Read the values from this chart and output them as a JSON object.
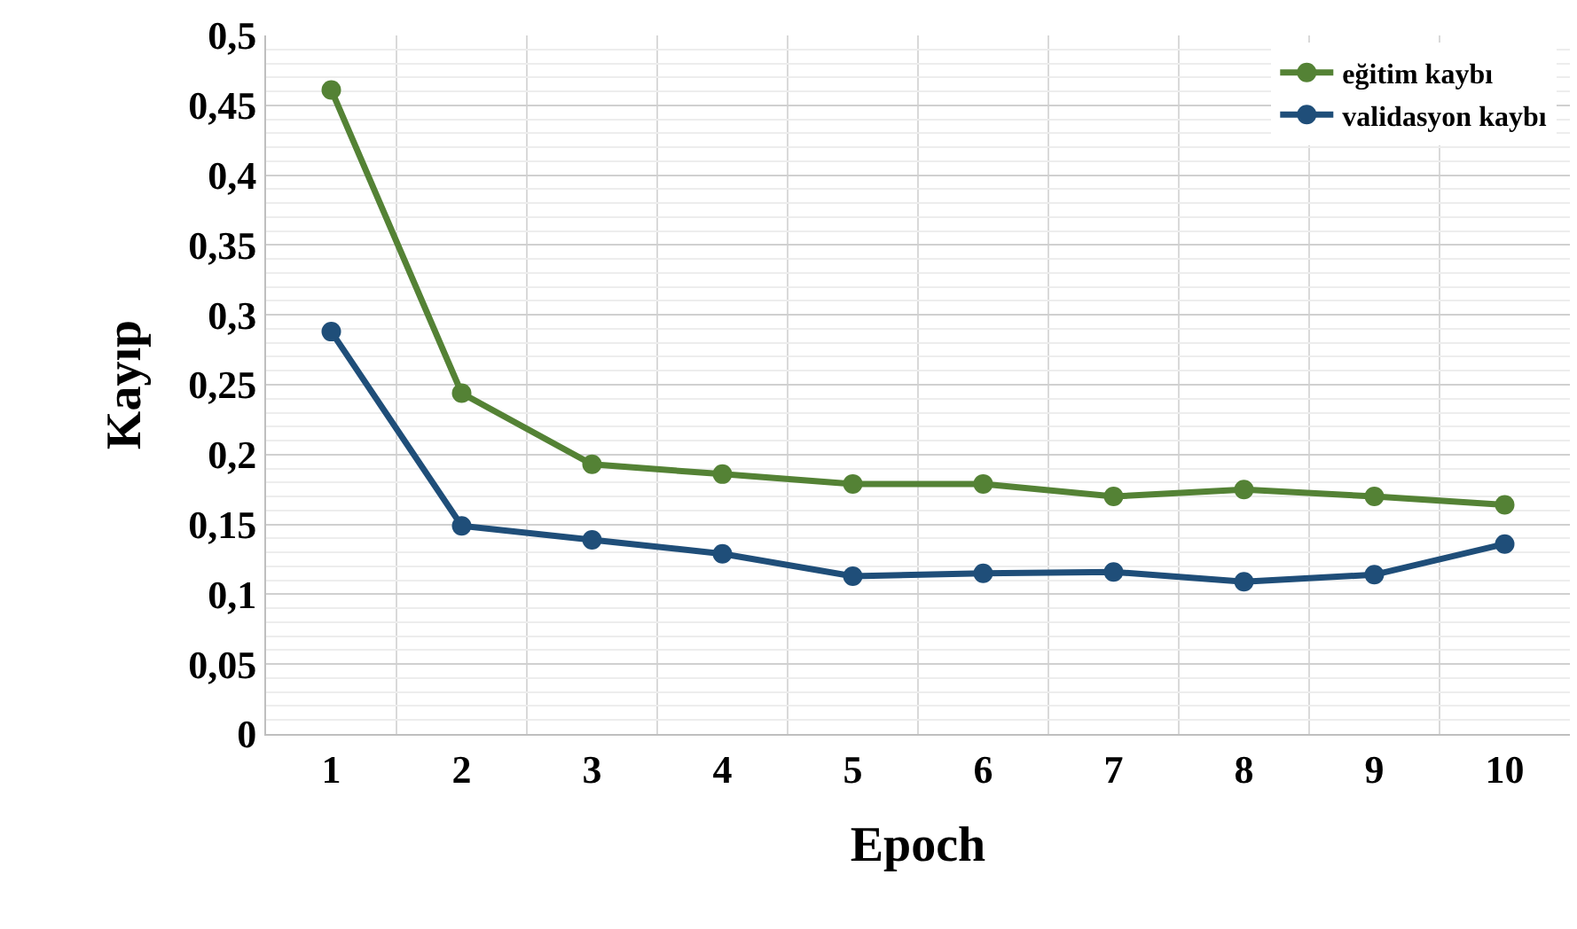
{
  "chart_data": {
    "type": "line",
    "xlabel": "Epoch",
    "ylabel": "Kayıp",
    "categories": [
      "1",
      "2",
      "3",
      "4",
      "5",
      "6",
      "7",
      "8",
      "9",
      "10"
    ],
    "series": [
      {
        "name": "eğitim kaybı",
        "color": "#548235",
        "values": [
          0.461,
          0.244,
          0.193,
          0.186,
          0.179,
          0.179,
          0.17,
          0.175,
          0.17,
          0.164
        ]
      },
      {
        "name": "validasyon kaybı",
        "color": "#1f4e79",
        "values": [
          0.288,
          0.149,
          0.139,
          0.129,
          0.113,
          0.115,
          0.116,
          0.109,
          0.114,
          0.136
        ]
      }
    ],
    "ylim": [
      0,
      0.5
    ],
    "yticks": [
      {
        "value": 0,
        "label": "0"
      },
      {
        "value": 0.05,
        "label": "0,05"
      },
      {
        "value": 0.1,
        "label": "0,1"
      },
      {
        "value": 0.15,
        "label": "0,15"
      },
      {
        "value": 0.2,
        "label": "0,2"
      },
      {
        "value": 0.25,
        "label": "0,25"
      },
      {
        "value": 0.3,
        "label": "0,3"
      },
      {
        "value": 0.35,
        "label": "0,35"
      },
      {
        "value": 0.4,
        "label": "0,4"
      },
      {
        "value": 0.45,
        "label": "0,45"
      },
      {
        "value": 0.5,
        "label": "0,5"
      }
    ],
    "grid": true,
    "legend": "top right",
    "marker": "circle",
    "line_style": "solid"
  }
}
